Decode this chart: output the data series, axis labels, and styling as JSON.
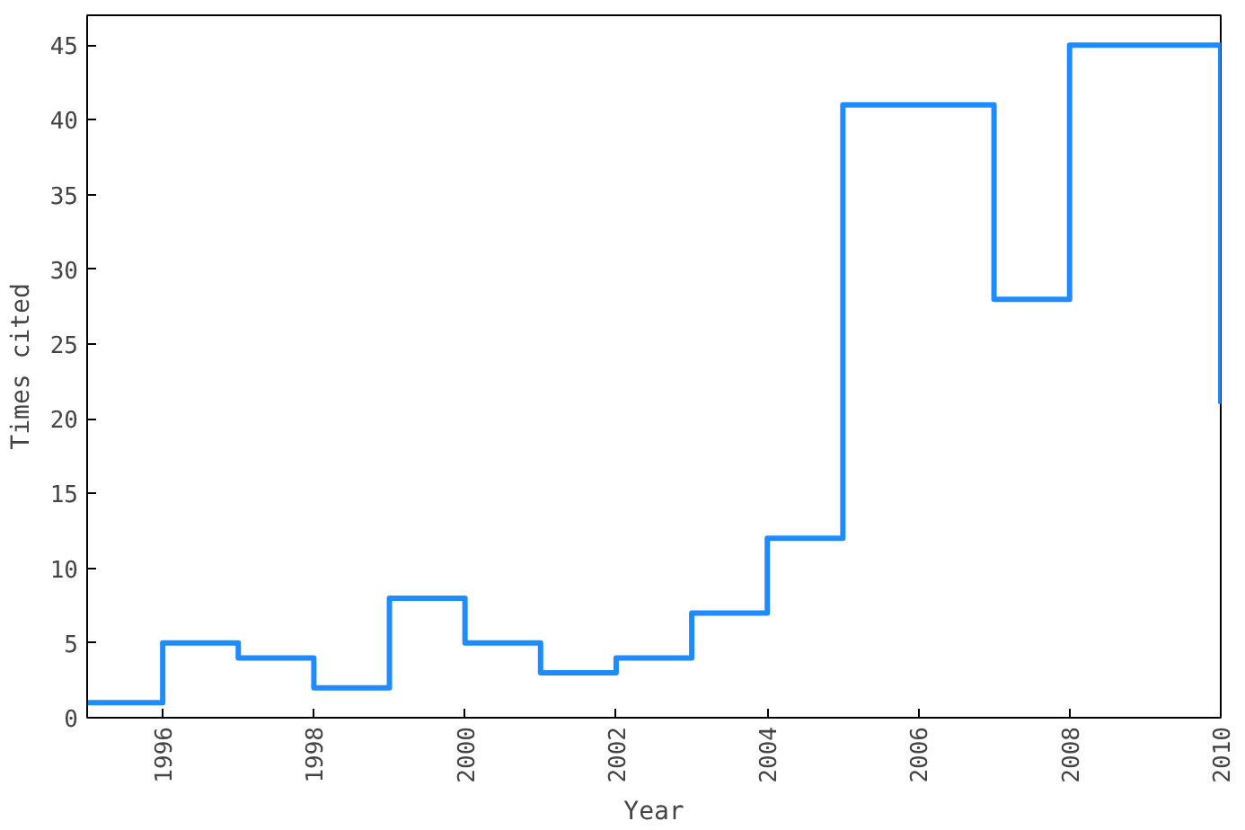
{
  "chart_data": {
    "type": "step",
    "xlabel": "Year",
    "ylabel": "Times cited",
    "x": [
      1995,
      1996,
      1997,
      1998,
      1999,
      2000,
      2001,
      2002,
      2003,
      2004,
      2005,
      2006,
      2007,
      2008,
      2009,
      2010
    ],
    "series": [
      {
        "color": "#1e8cff",
        "values": [
          1,
          5,
          4,
          2,
          8,
          5,
          3,
          4,
          7,
          12,
          41,
          41,
          28,
          45,
          45,
          21
        ]
      }
    ],
    "xlim": [
      1995,
      2010
    ],
    "xticks": [
      1996,
      1998,
      2000,
      2002,
      2004,
      2006,
      2008,
      2010
    ],
    "ylim": [
      0,
      47
    ],
    "yticks": [
      0,
      5,
      10,
      15,
      20,
      25,
      30,
      35,
      40,
      45
    ],
    "grid": false,
    "line_style": "solid"
  }
}
